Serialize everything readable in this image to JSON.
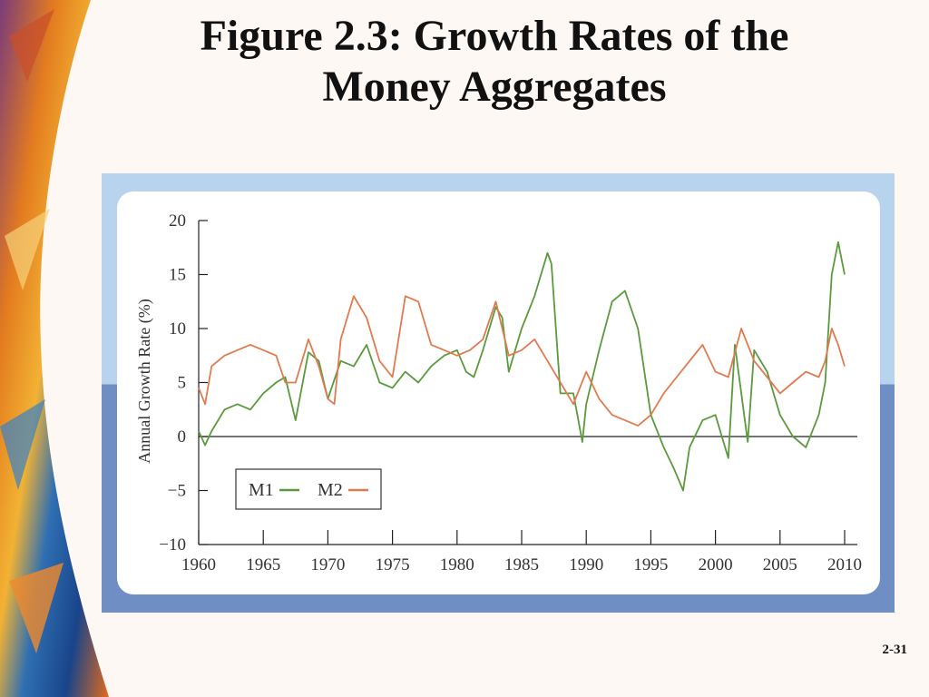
{
  "slide": {
    "title_line1": "Figure 2.3: Growth Rates of the",
    "title_line2": "Money Aggregates",
    "page_number": "2-31"
  },
  "chart_data": {
    "type": "line",
    "title": "",
    "xlabel": "",
    "ylabel": "Annual Growth Rate (%)",
    "xlim": [
      1960,
      2010
    ],
    "ylim": [
      -10,
      20
    ],
    "x_ticks": [
      "1960",
      "1965",
      "1970",
      "1975",
      "1980",
      "1985",
      "1990",
      "1995",
      "2000",
      "2005",
      "2010"
    ],
    "y_ticks": [
      "20",
      "15",
      "10",
      "5",
      "0",
      "−5",
      "−10"
    ],
    "grid": false,
    "legend_position": "bottom-left",
    "series": [
      {
        "name": "M1",
        "color": "#5a9a3c",
        "x": [
          1960,
          1960.5,
          1961,
          1962,
          1963,
          1964,
          1965,
          1966,
          1966.7,
          1967.5,
          1968.5,
          1969.3,
          1970,
          1971,
          1972,
          1973,
          1974,
          1975,
          1976,
          1977,
          1978,
          1979,
          1980,
          1980.7,
          1981.3,
          1982,
          1983,
          1983.5,
          1984,
          1985,
          1986,
          1987,
          1987.3,
          1988,
          1989,
          1989.7,
          1990,
          1991,
          1992,
          1993,
          1994,
          1995,
          1996,
          1996.8,
          1997.5,
          1998,
          1999,
          2000,
          2001,
          2001.5,
          2002,
          2002.5,
          2003,
          2004,
          2005,
          2006,
          2007,
          2008,
          2008.5,
          2009,
          2009.5,
          2010
        ],
        "y": [
          0.5,
          -0.8,
          0.5,
          2.5,
          3,
          2.5,
          4,
          5,
          5.5,
          1.5,
          7.8,
          7,
          3.5,
          7,
          6.5,
          8.5,
          5,
          4.5,
          6,
          5,
          6.5,
          7.5,
          8,
          6,
          5.5,
          8,
          12,
          11,
          6,
          10,
          13,
          17,
          16,
          4,
          4,
          -0.5,
          3,
          8,
          12.5,
          13.5,
          10,
          2,
          -1,
          -3,
          -5,
          -1,
          1.5,
          2,
          -2,
          8.5,
          4,
          -0.5,
          8,
          6,
          2,
          0,
          -1,
          2,
          5,
          15,
          18,
          15
        ],
        "label_shown": "M1"
      },
      {
        "name": "M2",
        "color": "#e07a50",
        "x": [
          1960,
          1960.5,
          1961,
          1962,
          1963,
          1964,
          1965,
          1966,
          1966.7,
          1967.5,
          1968.5,
          1969.3,
          1970,
          1970.5,
          1971,
          1972,
          1973,
          1974,
          1975,
          1976,
          1977,
          1978,
          1979,
          1980,
          1981,
          1982,
          1983,
          1984,
          1985,
          1986,
          1987,
          1988,
          1989,
          1990,
          1991,
          1992,
          1993,
          1994,
          1995,
          1996,
          1997,
          1998,
          1999,
          2000,
          2001,
          2002,
          2003,
          2004,
          2005,
          2006,
          2007,
          2008,
          2008.5,
          2009,
          2009.5,
          2010
        ],
        "y": [
          4.5,
          3,
          6.5,
          7.5,
          8,
          8.5,
          8,
          7.5,
          5,
          5,
          9,
          6.5,
          3.5,
          3,
          9,
          13,
          11,
          7,
          5.5,
          13,
          12.5,
          8.5,
          8,
          7.5,
          8,
          9,
          12.5,
          7.5,
          8,
          9,
          7,
          5,
          3,
          6,
          3.5,
          2,
          1.5,
          1,
          2,
          4,
          5.5,
          7,
          8.5,
          6,
          5.5,
          10,
          7,
          5.5,
          4,
          5,
          6,
          5.5,
          7,
          10,
          8.5,
          6.5
        ],
        "label_shown": "M2"
      }
    ]
  }
}
